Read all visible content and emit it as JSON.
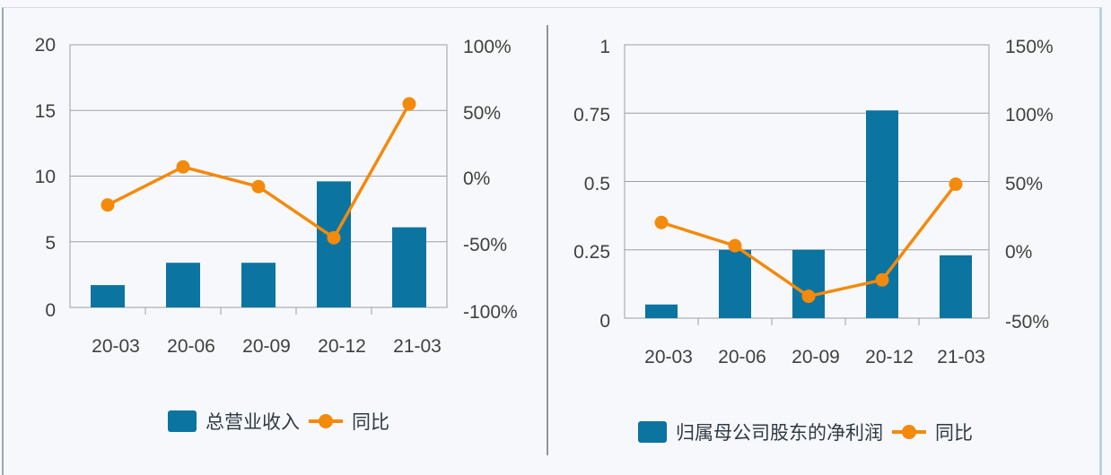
{
  "colors": {
    "bar": "#0b74a0",
    "line": "#f38a0c",
    "grid": "#9aa0a6",
    "text": "#404040"
  },
  "charts": [
    {
      "left_ticks": [
        "20",
        "15",
        "10",
        "5",
        "0"
      ],
      "right_ticks": [
        "100%",
        "50%",
        "0%",
        "-50%",
        "-100%"
      ],
      "categories": [
        "20-03",
        "20-06",
        "20-09",
        "20-12",
        "21-03"
      ],
      "legend": {
        "bar_label": "总营业收入",
        "line_label": "同比"
      }
    },
    {
      "left_ticks": [
        "1",
        "0.75",
        "0.5",
        "0.25",
        "0"
      ],
      "right_ticks": [
        "150%",
        "100%",
        "50%",
        "0%",
        "-50%"
      ],
      "categories": [
        "20-03",
        "20-06",
        "20-09",
        "20-12",
        "21-03"
      ],
      "legend": {
        "bar_label": "归属母公司股东的净利润",
        "line_label": "同比"
      }
    }
  ],
  "chart_data": [
    {
      "type": "bar",
      "title": "",
      "categories": [
        "20-03",
        "20-06",
        "20-09",
        "20-12",
        "21-03"
      ],
      "series": [
        {
          "name": "总营业收入",
          "type": "bar",
          "axis": "left",
          "values": [
            1.7,
            3.4,
            3.4,
            9.6,
            6.1
          ]
        },
        {
          "name": "同比",
          "type": "line",
          "axis": "right",
          "unit": "%",
          "values": [
            -22,
            7,
            -8,
            -47,
            55
          ]
        }
      ],
      "xlabel": "",
      "ylabel": "",
      "ylim": [
        0,
        20
      ],
      "y2lim": [
        -100,
        100
      ],
      "grid": true,
      "legend_position": "bottom"
    },
    {
      "type": "bar",
      "title": "",
      "categories": [
        "20-03",
        "20-06",
        "20-09",
        "20-12",
        "21-03"
      ],
      "series": [
        {
          "name": "归属母公司股东的净利润",
          "type": "bar",
          "axis": "left",
          "values": [
            0.05,
            0.25,
            0.25,
            0.76,
            0.23
          ]
        },
        {
          "name": "同比",
          "type": "line",
          "axis": "right",
          "unit": "%",
          "values": [
            20,
            3,
            -34,
            -22,
            48
          ]
        }
      ],
      "xlabel": "",
      "ylabel": "",
      "ylim": [
        0,
        1
      ],
      "y2lim": [
        -50,
        150
      ],
      "grid": true,
      "legend_position": "bottom"
    }
  ]
}
